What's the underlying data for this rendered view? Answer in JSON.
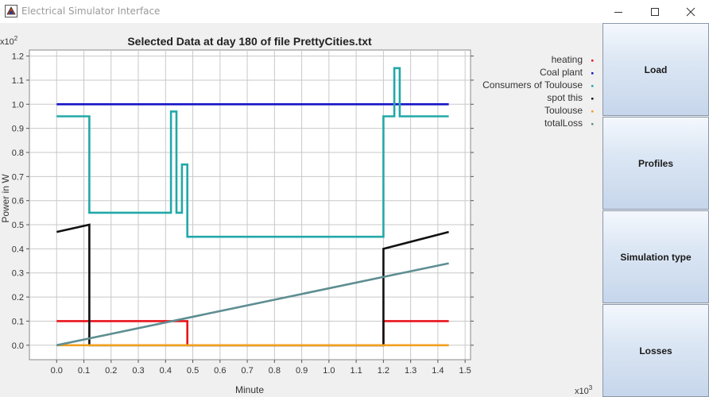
{
  "window": {
    "title": "Electrical Simulator Interface"
  },
  "sidebar": {
    "buttons": [
      {
        "label": "Load"
      },
      {
        "label": "Profiles"
      },
      {
        "label": "Simulation type"
      },
      {
        "label": "Losses"
      }
    ]
  },
  "chart_data": {
    "type": "line",
    "title": "Selected Data at day 180 of file PrettyCities.txt",
    "xlabel": "Minute",
    "ylabel": "Power in W",
    "x_multiplier_label": "x10",
    "x_multiplier_exp": "3",
    "y_multiplier_label": "x10",
    "y_multiplier_exp": "2",
    "xlim": [
      -0.1,
      1.52
    ],
    "ylim": [
      -0.06,
      1.225
    ],
    "xticks": [
      0.0,
      0.1,
      0.2,
      0.3,
      0.4,
      0.5,
      0.6,
      0.7,
      0.8,
      0.9,
      1.0,
      1.1,
      1.2,
      1.3,
      1.4,
      1.5
    ],
    "xtick_labels": [
      "0.0",
      "0.1",
      "0.2",
      "0.3",
      "0.4",
      "0.5",
      "0.6",
      "0.7",
      "0.8",
      "0.9",
      "1.0",
      "1.1",
      "1.2",
      "1.3",
      "1.4",
      "1.5"
    ],
    "yticks": [
      0.0,
      0.1,
      0.2,
      0.3,
      0.4,
      0.5,
      0.6,
      0.7,
      0.8,
      0.9,
      1.0,
      1.1,
      1.2
    ],
    "ytick_labels": [
      "0.0",
      "0.1",
      "0.2",
      "0.3",
      "0.4",
      "0.5",
      "0.6",
      "0.7",
      "0.8",
      "0.9",
      "1.0",
      "1.1",
      "1.2"
    ],
    "grid": true,
    "legend_position": "right",
    "series": [
      {
        "name": "heating",
        "color": "#e8141b",
        "points": [
          [
            0,
            0.1
          ],
          [
            0.48,
            0.1
          ],
          [
            0.48,
            0
          ],
          [
            1.2,
            0
          ],
          [
            1.2,
            0.1
          ],
          [
            1.44,
            0.1
          ]
        ]
      },
      {
        "name": "Coal plant",
        "color": "#1515c8",
        "points": [
          [
            0,
            1.0
          ],
          [
            1.44,
            1.0
          ]
        ]
      },
      {
        "name": "Consumers of Toulouse",
        "color": "#22a8a8",
        "points": [
          [
            0,
            0.95
          ],
          [
            0.12,
            0.95
          ],
          [
            0.12,
            0.55
          ],
          [
            0.42,
            0.55
          ],
          [
            0.42,
            0.97
          ],
          [
            0.44,
            0.97
          ],
          [
            0.44,
            0.55
          ],
          [
            0.46,
            0.55
          ],
          [
            0.46,
            0.75
          ],
          [
            0.48,
            0.75
          ],
          [
            0.48,
            0.45
          ],
          [
            1.2,
            0.45
          ],
          [
            1.2,
            0.95
          ],
          [
            1.24,
            0.95
          ],
          [
            1.24,
            1.15
          ],
          [
            1.26,
            1.15
          ],
          [
            1.26,
            0.95
          ],
          [
            1.44,
            0.95
          ]
        ]
      },
      {
        "name": "spot this",
        "color": "#111111",
        "points": [
          [
            0,
            0.47
          ],
          [
            0.12,
            0.5
          ],
          [
            0.12,
            0
          ],
          [
            0.48,
            0
          ],
          [
            0.48,
            0
          ],
          [
            1.2,
            0
          ],
          [
            1.2,
            0.4
          ],
          [
            1.44,
            0.47
          ]
        ]
      },
      {
        "name": "Toulouse",
        "color": "#f0a020",
        "points": [
          [
            0,
            0
          ],
          [
            0.12,
            0
          ],
          [
            0.12,
            0
          ],
          [
            1.2,
            0
          ],
          [
            1.2,
            0
          ],
          [
            1.44,
            0
          ]
        ]
      },
      {
        "name": "totalLoss",
        "color": "#5e8e92",
        "points": [
          [
            0,
            0
          ],
          [
            1.44,
            0.34
          ]
        ]
      }
    ]
  }
}
